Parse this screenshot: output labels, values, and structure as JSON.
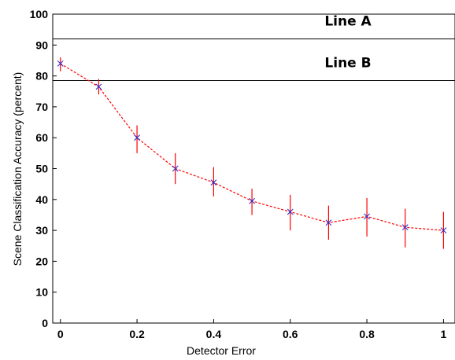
{
  "chart_data": {
    "type": "line",
    "xlabel": "Detector Error",
    "ylabel": "Scene Classification Accuracy (percent)",
    "xlim": [
      -0.02,
      1.03
    ],
    "ylim": [
      0,
      100
    ],
    "x_ticks": [
      "0",
      "0.2",
      "0.4",
      "0.6",
      "0.8",
      "1"
    ],
    "y_ticks": [
      "0",
      "10",
      "20",
      "30",
      "40",
      "50",
      "60",
      "70",
      "80",
      "90",
      "100"
    ],
    "reference_lines": [
      {
        "name": "Line A",
        "y": 92
      },
      {
        "name": "Line B",
        "y": 78.5
      }
    ],
    "series": [
      {
        "x": [
          0,
          0.1,
          0.2,
          0.3,
          0.4,
          0.5,
          0.6,
          0.7,
          0.8,
          0.9,
          1.0
        ],
        "y": [
          84,
          76.5,
          60,
          50,
          45.5,
          39.5,
          36,
          32.5,
          34.5,
          31,
          30
        ],
        "err_low": [
          81.5,
          74,
          55,
          45,
          41,
          35,
          30,
          27,
          28,
          24.5,
          24
        ],
        "err_high": [
          86,
          79,
          64,
          55,
          50.5,
          43.5,
          41.5,
          38,
          40.5,
          37,
          36
        ],
        "line_color": "#ff0000",
        "line_style": "dashed",
        "marker": "x",
        "marker_color": "#3333cc",
        "errorbar_color": "#ff0000"
      }
    ],
    "grid": false,
    "frame": "box"
  }
}
